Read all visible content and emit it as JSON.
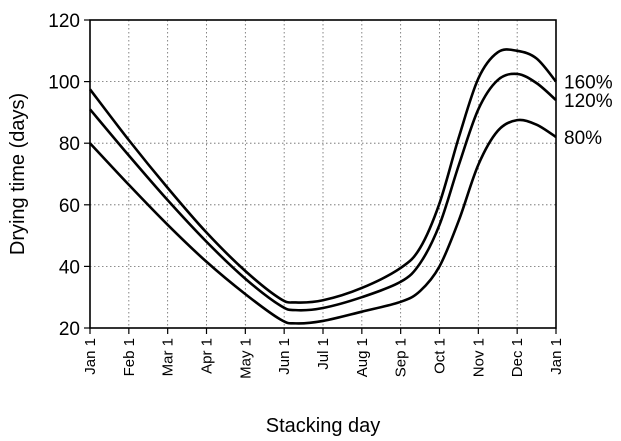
{
  "chart_data": {
    "type": "line",
    "title": "",
    "xlabel": "Stacking day",
    "ylabel": "Drying time (days)",
    "categories": [
      "Jan 1",
      "Feb 1",
      "Mar 1",
      "Apr 1",
      "May 1",
      "Jun 1",
      "Jul 1",
      "Aug 1",
      "Sep 1",
      "Oct 1",
      "Nov 1",
      "Dec 1",
      "Jan 1"
    ],
    "ylim": [
      20,
      120
    ],
    "yticks": [
      20,
      40,
      60,
      80,
      100,
      120
    ],
    "grid": true,
    "series": [
      {
        "name": "160%",
        "color": "#000000",
        "points": [
          [
            0,
            97.5
          ],
          [
            1,
            81
          ],
          [
            2,
            65.5
          ],
          [
            3,
            51
          ],
          [
            4,
            38.5
          ],
          [
            4.9,
            29.5
          ],
          [
            5.3,
            28.3
          ],
          [
            6,
            29
          ],
          [
            7,
            33
          ],
          [
            8,
            39.5
          ],
          [
            8.5,
            46
          ],
          [
            9,
            60.5
          ],
          [
            9.5,
            82
          ],
          [
            10,
            101
          ],
          [
            10.5,
            109.5
          ],
          [
            11,
            110
          ],
          [
            11.5,
            107.5
          ],
          [
            12,
            100
          ]
        ]
      },
      {
        "name": "120%",
        "color": "#000000",
        "points": [
          [
            0,
            91
          ],
          [
            1,
            76
          ],
          [
            2,
            61.5
          ],
          [
            3,
            48
          ],
          [
            4,
            36
          ],
          [
            4.9,
            27.3
          ],
          [
            5.3,
            25.8
          ],
          [
            6,
            26.5
          ],
          [
            7,
            30
          ],
          [
            8,
            35
          ],
          [
            8.5,
            41
          ],
          [
            9,
            53.5
          ],
          [
            9.5,
            73
          ],
          [
            10,
            91
          ],
          [
            10.5,
            100.5
          ],
          [
            11,
            102.5
          ],
          [
            11.5,
            99.5
          ],
          [
            12,
            94
          ]
        ]
      },
      {
        "name": "80%",
        "color": "#000000",
        "points": [
          [
            0,
            80
          ],
          [
            1,
            66.5
          ],
          [
            2,
            53.5
          ],
          [
            3,
            41.5
          ],
          [
            4,
            31
          ],
          [
            4.9,
            22.8
          ],
          [
            5.3,
            21.5
          ],
          [
            6,
            22.3
          ],
          [
            7,
            25.3
          ],
          [
            8,
            28.5
          ],
          [
            8.5,
            32
          ],
          [
            9,
            40
          ],
          [
            9.5,
            55
          ],
          [
            10,
            73
          ],
          [
            10.5,
            84
          ],
          [
            11,
            87.5
          ],
          [
            11.5,
            86
          ],
          [
            12,
            82
          ]
        ]
      }
    ]
  }
}
